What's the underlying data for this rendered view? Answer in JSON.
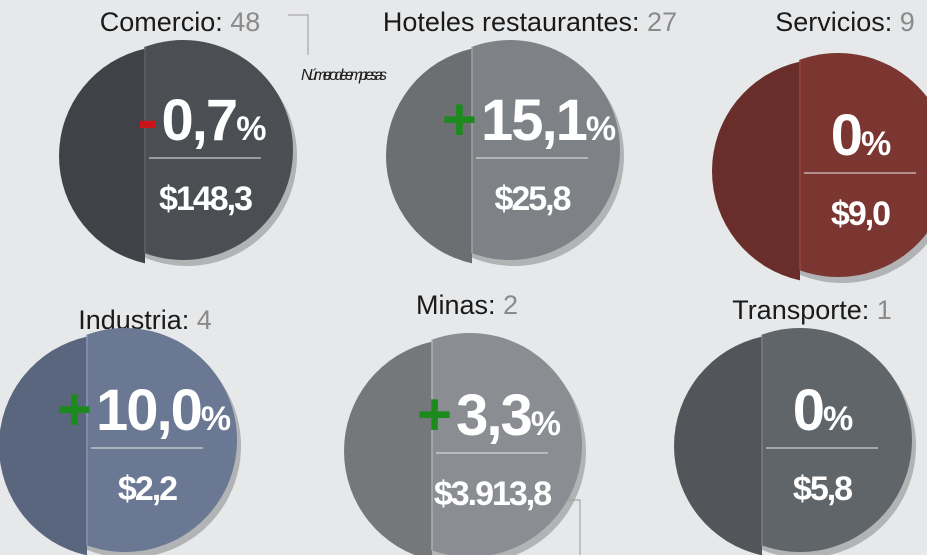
{
  "annotation": "Número de empresas",
  "sectors": [
    {
      "name": "Comercio:",
      "count": "48",
      "sign": "-",
      "change": "0,7",
      "unit": "%",
      "amount": "$148,3",
      "color": "#4b4e53"
    },
    {
      "name": "Hoteles restaurantes:",
      "count": "27",
      "sign": "+",
      "change": "15,1",
      "unit": "%",
      "amount": "$25,8",
      "color": "#7e8286"
    },
    {
      "name": "Servicios:",
      "count": "9",
      "sign": "",
      "change": "0",
      "unit": "%",
      "amount": "$9,0",
      "color": "#7b3631"
    },
    {
      "name": "Industria:",
      "count": "4",
      "sign": "+",
      "change": "10,0",
      "unit": "%",
      "amount": "$2,2",
      "color": "#6a7894"
    },
    {
      "name": "Minas:",
      "count": "2",
      "sign": "+",
      "change": "3,3",
      "unit": "%",
      "amount": "$3.913,8",
      "color": "#8a8d91"
    },
    {
      "name": "Transporte:",
      "count": "1",
      "sign": "",
      "change": "0",
      "unit": "%",
      "amount": "$5,8",
      "color": "#60656a"
    }
  ]
}
